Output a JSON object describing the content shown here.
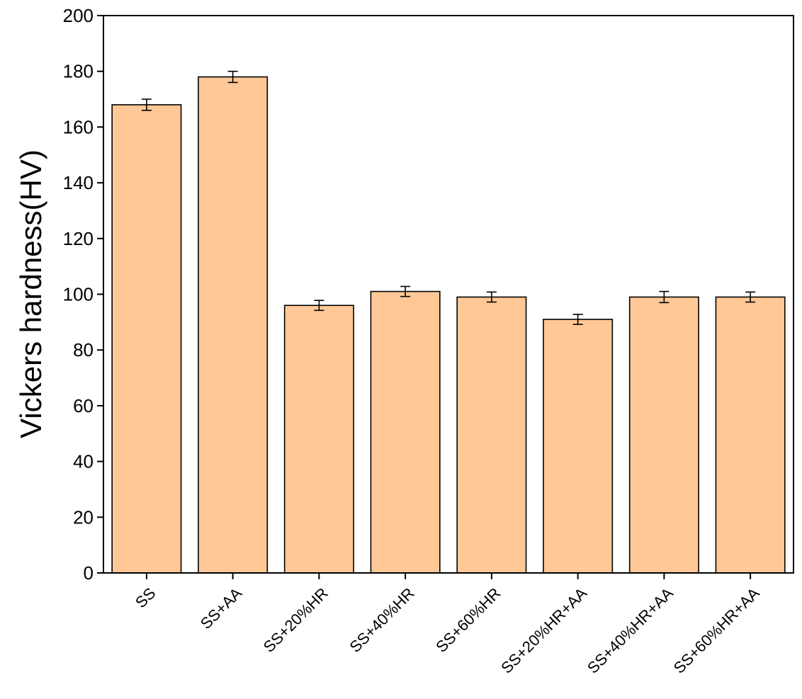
{
  "chart_data": {
    "type": "bar",
    "title": "",
    "xlabel": "",
    "ylabel": "Vickers hardness(HV)",
    "ylim": [
      0,
      200
    ],
    "yticks": [
      0,
      20,
      40,
      60,
      80,
      100,
      120,
      140,
      160,
      180,
      200
    ],
    "categories": [
      "SS",
      "SS+AA",
      "SS+20%HR",
      "SS+40%HR",
      "SS+60%HR",
      "SS+20%HR+AA",
      "SS+40%HR+AA",
      "SS+60%HR+AA"
    ],
    "values": [
      168,
      178,
      96,
      101,
      99,
      91,
      99,
      99
    ],
    "errors": [
      2,
      2,
      1.8,
      1.8,
      1.8,
      1.8,
      2,
      1.8
    ],
    "bar_color": "#FFC896",
    "edge_color": "#000000",
    "grid": false,
    "legend": "none"
  }
}
